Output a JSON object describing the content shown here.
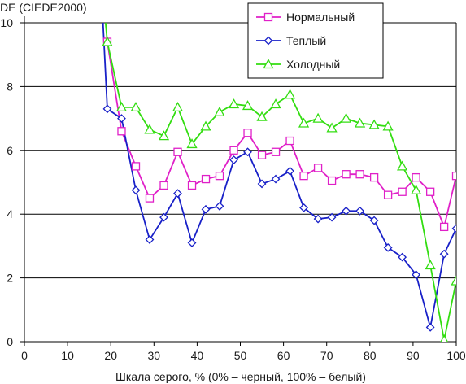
{
  "chart_data": {
    "type": "line",
    "ylabel": "DE (CIEDE2000)",
    "xlabel": "Шкала серого, % (0% – черный, 100% – белый)",
    "xlim": [
      0,
      100
    ],
    "ylim": [
      0,
      10
    ],
    "xticks": [
      0,
      10,
      20,
      30,
      40,
      50,
      60,
      70,
      80,
      90,
      100
    ],
    "yticks": [
      0,
      2,
      4,
      6,
      8,
      10
    ],
    "grid": "horizontal",
    "legend_position": "top-right",
    "series": [
      {
        "name": "Нормальный",
        "color": "#e020c8",
        "marker": "square",
        "x": [
          19.2,
          22.5,
          25.8,
          29.0,
          32.3,
          35.5,
          38.8,
          42.0,
          45.2,
          48.5,
          51.7,
          55.0,
          58.2,
          61.5,
          64.7,
          68.0,
          71.2,
          74.5,
          77.7,
          81.0,
          84.2,
          87.5,
          90.7,
          94.0,
          97.2,
          100.0
        ],
        "y": [
          9.4,
          6.6,
          5.5,
          4.5,
          4.9,
          5.95,
          4.9,
          5.1,
          5.2,
          6.0,
          6.55,
          5.85,
          5.95,
          6.3,
          5.2,
          5.45,
          5.05,
          5.25,
          5.25,
          5.15,
          4.6,
          4.7,
          5.15,
          4.7,
          3.6,
          5.2
        ]
      },
      {
        "name": "Теплый",
        "color": "#1820c8",
        "marker": "diamond",
        "x": [
          18.2,
          19.2,
          22.5,
          25.8,
          29.0,
          32.3,
          35.5,
          38.8,
          42.0,
          45.2,
          48.5,
          51.7,
          55.0,
          58.2,
          61.5,
          64.7,
          68.0,
          71.2,
          74.5,
          77.7,
          81.0,
          84.2,
          87.5,
          90.7,
          94.0,
          97.2,
          100.0
        ],
        "y": [
          10.0,
          7.3,
          7.0,
          4.75,
          3.2,
          3.9,
          4.65,
          3.1,
          4.15,
          4.25,
          5.7,
          5.95,
          4.95,
          5.1,
          5.35,
          4.2,
          3.85,
          3.9,
          4.1,
          4.1,
          3.8,
          2.95,
          2.65,
          2.1,
          0.45,
          2.75,
          3.55
        ]
      },
      {
        "name": "Холодный",
        "color": "#33dd11",
        "marker": "triangle",
        "x": [
          18.8,
          19.2,
          22.5,
          25.8,
          29.0,
          32.3,
          35.5,
          38.8,
          42.0,
          45.2,
          48.5,
          51.7,
          55.0,
          58.2,
          61.5,
          64.7,
          68.0,
          71.2,
          74.5,
          77.7,
          81.0,
          84.2,
          87.5,
          90.7,
          94.0,
          97.2,
          100.0
        ],
        "y": [
          10.0,
          9.4,
          7.35,
          7.35,
          6.65,
          6.45,
          7.35,
          6.2,
          6.75,
          7.2,
          7.45,
          7.4,
          7.05,
          7.45,
          7.75,
          6.85,
          7.0,
          6.7,
          7.0,
          6.85,
          6.8,
          6.75,
          5.5,
          4.75,
          2.4,
          0.05,
          1.9
        ]
      }
    ]
  }
}
